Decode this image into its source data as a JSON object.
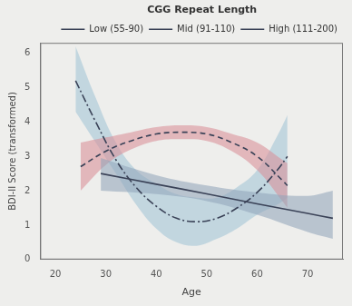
{
  "chart_data": {
    "type": "line",
    "x_label": "Age",
    "y_label": "BDI-II Score (transformed)",
    "legend_title": "CGG Repeat Length",
    "legend": "upper right",
    "grid": false,
    "xlim": [
      17,
      77
    ],
    "xticks": [
      20,
      30,
      40,
      50,
      60,
      70
    ],
    "ylim": [
      0,
      6.3
    ],
    "yticks": [
      0,
      1,
      2,
      3,
      4,
      5,
      6
    ],
    "series": [
      {
        "name": "Low (55-90)",
        "color": "#8ea3b8",
        "line_style": "solid",
        "x": [
          29,
          40,
          50,
          60,
          70,
          75
        ],
        "values": [
          2.5,
          2.19,
          1.91,
          1.62,
          1.34,
          1.2
        ],
        "lower": [
          2.0,
          1.9,
          1.7,
          1.3,
          0.8,
          0.6
        ],
        "upper": [
          2.95,
          2.45,
          2.15,
          1.95,
          1.85,
          2.0
        ]
      },
      {
        "name": "Mid (91-110)",
        "color": "#d98a94",
        "line_style": "dashed",
        "x": [
          25,
          30,
          35,
          40,
          45,
          50,
          55,
          60,
          65,
          66
        ],
        "values": [
          2.7,
          3.15,
          3.45,
          3.65,
          3.7,
          3.65,
          3.4,
          3.0,
          2.3,
          2.15
        ],
        "lower": [
          2.0,
          2.75,
          3.2,
          3.45,
          3.5,
          3.45,
          3.15,
          2.6,
          1.7,
          1.5
        ],
        "upper": [
          3.4,
          3.55,
          3.7,
          3.85,
          3.9,
          3.85,
          3.65,
          3.4,
          2.9,
          2.8
        ]
      },
      {
        "name": "High (111-200)",
        "color": "#9ec3d6",
        "line_style": "dashdot",
        "x": [
          24,
          28,
          32,
          36,
          40,
          44,
          48,
          52,
          56,
          60,
          64,
          66
        ],
        "values": [
          5.2,
          4.0,
          2.9,
          2.1,
          1.55,
          1.2,
          1.1,
          1.2,
          1.5,
          1.95,
          2.6,
          3.0
        ],
        "lower": [
          4.3,
          3.4,
          2.5,
          1.6,
          0.9,
          0.5,
          0.4,
          0.6,
          0.9,
          1.3,
          1.6,
          1.8
        ],
        "upper": [
          6.2,
          4.7,
          3.4,
          2.6,
          2.2,
          1.9,
          1.8,
          1.8,
          2.1,
          2.6,
          3.6,
          4.2
        ]
      }
    ]
  }
}
